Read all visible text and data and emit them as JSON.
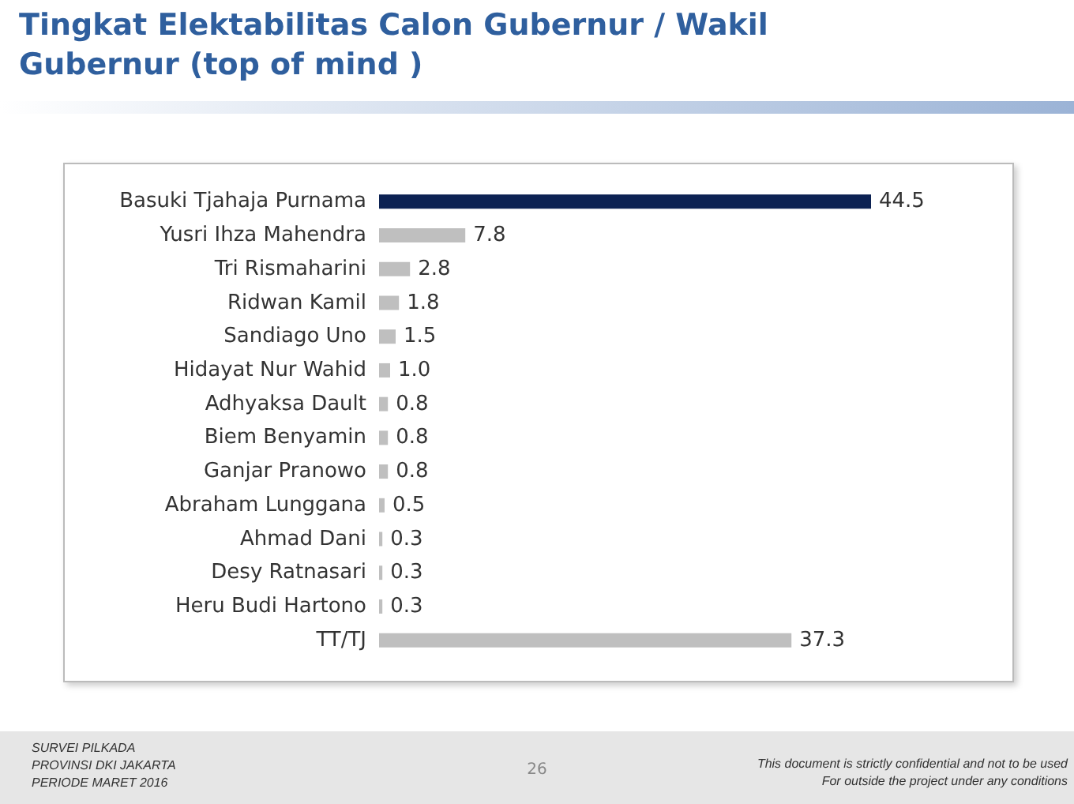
{
  "chart_data": {
    "type": "bar",
    "orientation": "horizontal",
    "title": "Tingkat Elektabilitas Calon Gubernur / Wakil Gubernur (top of mind )",
    "categories": [
      "Basuki Tjahaja Purnama",
      "Yusri Ihza Mahendra",
      "Tri Rismaharini",
      "Ridwan Kamil",
      "Sandiago Uno",
      "Hidayat Nur Wahid",
      "Adhyaksa Dault",
      "Biem Benyamin",
      "Ganjar Pranowo",
      "Abraham Lunggana",
      "Ahmad Dani",
      "Desy Ratnasari",
      "Heru Budi Hartono",
      "TT/TJ"
    ],
    "values": [
      44.5,
      7.8,
      2.8,
      1.8,
      1.5,
      1.0,
      0.8,
      0.8,
      0.8,
      0.5,
      0.3,
      0.3,
      0.3,
      37.3
    ],
    "value_labels": [
      "44.5",
      "7.8",
      "2.8",
      "1.8",
      "1.5",
      "1.0",
      "0.8",
      "0.8",
      "0.8",
      "0.5",
      "0.3",
      "0.3",
      "0.3",
      "37.3"
    ],
    "colors": [
      "#0c2253",
      "#bfbfbf",
      "#bfbfbf",
      "#bfbfbf",
      "#bfbfbf",
      "#bfbfbf",
      "#bfbfbf",
      "#bfbfbf",
      "#bfbfbf",
      "#bfbfbf",
      "#bfbfbf",
      "#bfbfbf",
      "#bfbfbf",
      "#bfbfbf"
    ],
    "annotations": [
      "SURVEI PILKADA",
      "PROVINSI DKI JAKARTA",
      "PERIODE MARET 2016",
      "26",
      "This document is strictly confidential and not to be used",
      "For outside the project under any conditions"
    ]
  }
}
